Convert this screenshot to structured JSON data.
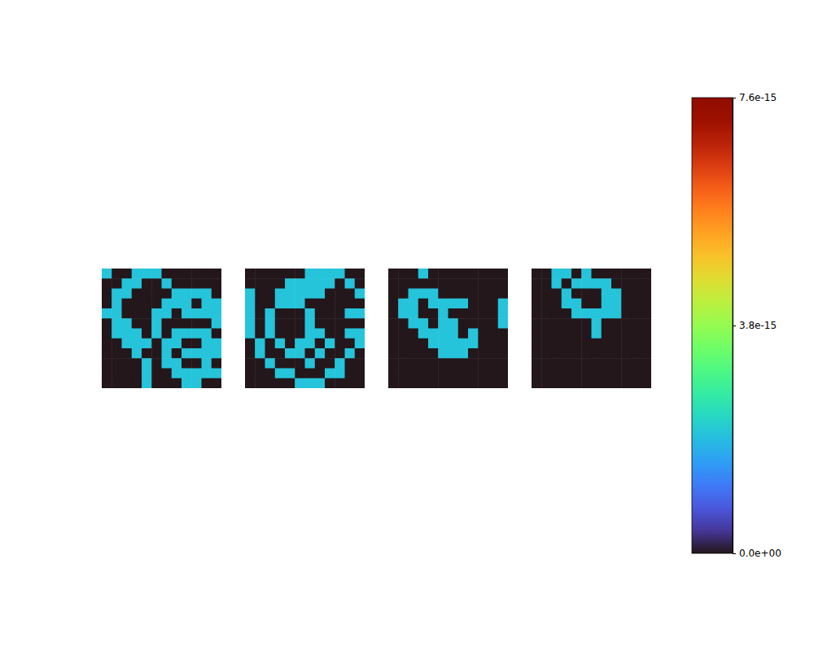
{
  "chart_data": {
    "type": "heatmap",
    "panels": [
      {
        "cells": [
          [
            2e-15,
            0,
            0,
            2e-15,
            2e-15,
            2e-15,
            0,
            0,
            0,
            0,
            0,
            0
          ],
          [
            0,
            0,
            2e-15,
            2e-15,
            0,
            0,
            2e-15,
            0,
            0,
            0,
            0,
            0
          ],
          [
            0,
            2e-15,
            2e-15,
            0,
            0,
            0,
            0,
            2e-15,
            2e-15,
            2e-15,
            2e-15,
            0
          ],
          [
            0,
            2e-15,
            0,
            0,
            0,
            0,
            2e-15,
            2e-15,
            2e-15,
            0,
            2e-15,
            2e-15
          ],
          [
            2e-15,
            2e-15,
            0,
            0,
            0,
            2e-15,
            2e-15,
            0,
            2e-15,
            2e-15,
            2e-15,
            2e-15
          ],
          [
            0,
            2e-15,
            2e-15,
            0,
            0,
            2e-15,
            0,
            0,
            0,
            0,
            0,
            2e-15
          ],
          [
            0,
            2e-15,
            2e-15,
            2e-15,
            0,
            2e-15,
            0,
            2e-15,
            2e-15,
            2e-15,
            2e-15,
            0
          ],
          [
            0,
            0,
            2e-15,
            2e-15,
            2e-15,
            0,
            2e-15,
            2e-15,
            0,
            0,
            2e-15,
            2e-15
          ],
          [
            0,
            0,
            0,
            2e-15,
            0,
            0,
            2e-15,
            0,
            2e-15,
            2e-15,
            2e-15,
            2e-15
          ],
          [
            0,
            0,
            0,
            0,
            2e-15,
            0,
            2e-15,
            2e-15,
            0,
            0,
            2e-15,
            0
          ],
          [
            0,
            0,
            0,
            0,
            2e-15,
            0,
            0,
            2e-15,
            2e-15,
            2e-15,
            2e-15,
            2e-15
          ],
          [
            0,
            0,
            0,
            0,
            2e-15,
            0,
            0,
            0,
            2e-15,
            2e-15,
            0,
            0
          ]
        ]
      },
      {
        "cells": [
          [
            0,
            0,
            0,
            0,
            0,
            0,
            2e-15,
            2e-15,
            2e-15,
            2e-15,
            0,
            0
          ],
          [
            0,
            0,
            0,
            0,
            2e-15,
            2e-15,
            2e-15,
            2e-15,
            2e-15,
            0,
            2e-15,
            0
          ],
          [
            2e-15,
            0,
            0,
            2e-15,
            2e-15,
            2e-15,
            2e-15,
            2e-15,
            0,
            0,
            0,
            2e-15
          ],
          [
            2e-15,
            0,
            0,
            2e-15,
            2e-15,
            2e-15,
            0,
            0,
            0,
            0,
            0,
            0
          ],
          [
            2e-15,
            0,
            2e-15,
            0,
            0,
            0,
            2e-15,
            0,
            0,
            0,
            2e-15,
            2e-15
          ],
          [
            2e-15,
            0,
            2e-15,
            0,
            0,
            0,
            2e-15,
            0,
            0,
            0,
            0,
            0
          ],
          [
            2e-15,
            0,
            2e-15,
            0,
            0,
            0,
            2e-15,
            2e-15,
            0,
            0,
            2e-15,
            2e-15
          ],
          [
            0,
            2e-15,
            0,
            2e-15,
            0,
            2e-15,
            2e-15,
            0,
            2e-15,
            0,
            0,
            2e-15
          ],
          [
            0,
            2e-15,
            0,
            0,
            2e-15,
            2e-15,
            0,
            2e-15,
            0,
            0,
            2e-15,
            0
          ],
          [
            0,
            0,
            2e-15,
            0,
            0,
            0,
            2e-15,
            0,
            0,
            2e-15,
            0,
            0
          ],
          [
            0,
            0,
            0,
            2e-15,
            2e-15,
            0,
            0,
            0,
            2e-15,
            2e-15,
            0,
            0
          ],
          [
            0,
            0,
            0,
            0,
            0,
            2e-15,
            2e-15,
            2e-15,
            0,
            0,
            0,
            0
          ]
        ]
      },
      {
        "cells": [
          [
            0,
            0,
            0,
            2e-15,
            0,
            0,
            0,
            0,
            0,
            0,
            0,
            0
          ],
          [
            0,
            0,
            0,
            0,
            0,
            0,
            0,
            0,
            0,
            0,
            0,
            0
          ],
          [
            0,
            0,
            2e-15,
            2e-15,
            2e-15,
            0,
            0,
            0,
            0,
            0,
            0,
            0
          ],
          [
            0,
            2e-15,
            2e-15,
            0,
            2e-15,
            2e-15,
            2e-15,
            2e-15,
            0,
            0,
            0,
            2e-15
          ],
          [
            0,
            2e-15,
            2e-15,
            0,
            0,
            2e-15,
            0,
            0,
            0,
            0,
            0,
            2e-15
          ],
          [
            0,
            0,
            2e-15,
            2e-15,
            0,
            2e-15,
            2e-15,
            0,
            0,
            0,
            0,
            2e-15
          ],
          [
            0,
            0,
            0,
            2e-15,
            2e-15,
            2e-15,
            2e-15,
            0,
            2e-15,
            0,
            0,
            0
          ],
          [
            0,
            0,
            0,
            0,
            2e-15,
            2e-15,
            2e-15,
            2e-15,
            2e-15,
            0,
            0,
            0
          ],
          [
            0,
            0,
            0,
            0,
            0,
            2e-15,
            2e-15,
            2e-15,
            0,
            0,
            0,
            0
          ],
          [
            0,
            0,
            0,
            0,
            0,
            0,
            0,
            0,
            0,
            0,
            0,
            0
          ],
          [
            0,
            0,
            0,
            0,
            0,
            0,
            0,
            0,
            0,
            0,
            0,
            0
          ],
          [
            0,
            0,
            0,
            0,
            0,
            0,
            0,
            0,
            0,
            0,
            0,
            0
          ]
        ]
      },
      {
        "cells": [
          [
            0,
            0,
            2e-15,
            2e-15,
            0,
            2e-15,
            0,
            0,
            0,
            0,
            0,
            0
          ],
          [
            0,
            0,
            2e-15,
            0,
            2e-15,
            2e-15,
            2e-15,
            2e-15,
            0,
            0,
            0,
            0
          ],
          [
            0,
            0,
            0,
            2e-15,
            0,
            0,
            0,
            2e-15,
            2e-15,
            0,
            0,
            0
          ],
          [
            0,
            0,
            0,
            2e-15,
            2e-15,
            0,
            0,
            2e-15,
            2e-15,
            0,
            0,
            0
          ],
          [
            0,
            0,
            0,
            0,
            2e-15,
            2e-15,
            2e-15,
            2e-15,
            2e-15,
            0,
            0,
            0
          ],
          [
            0,
            0,
            0,
            0,
            0,
            0,
            2e-15,
            0,
            0,
            0,
            0,
            0
          ],
          [
            0,
            0,
            0,
            0,
            0,
            0,
            2e-15,
            0,
            0,
            0,
            0,
            0
          ],
          [
            0,
            0,
            0,
            0,
            0,
            0,
            0,
            0,
            0,
            0,
            0,
            0
          ],
          [
            0,
            0,
            0,
            0,
            0,
            0,
            0,
            0,
            0,
            0,
            0,
            0
          ],
          [
            0,
            0,
            0,
            0,
            0,
            0,
            0,
            0,
            0,
            0,
            0,
            0
          ],
          [
            0,
            0,
            0,
            0,
            0,
            0,
            0,
            0,
            0,
            0,
            0,
            0
          ],
          [
            0,
            0,
            0,
            0,
            0,
            0,
            0,
            0,
            0,
            0,
            0,
            0
          ]
        ]
      }
    ],
    "colorbar": {
      "range": [
        0,
        7.6e-15
      ],
      "ticks": [
        {
          "value": 0,
          "label": "0.0e+00"
        },
        {
          "value": 3.8e-15,
          "label": "3.8e-15"
        },
        {
          "value": 7.6e-15,
          "label": "7.6e-15"
        }
      ]
    }
  }
}
